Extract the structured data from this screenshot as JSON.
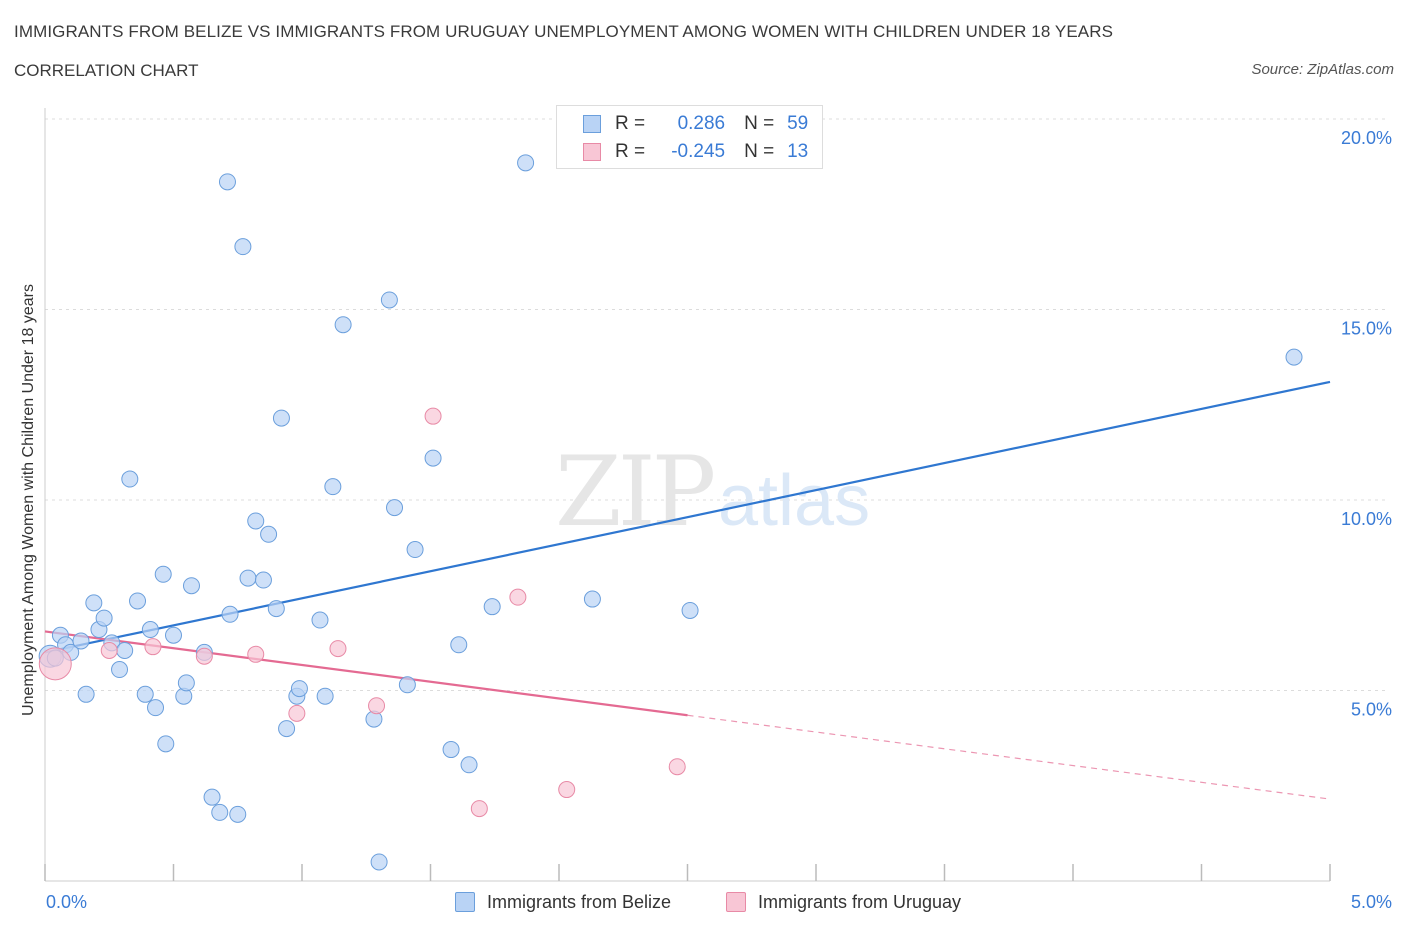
{
  "header": {
    "title": "IMMIGRANTS FROM BELIZE VS IMMIGRANTS FROM URUGUAY UNEMPLOYMENT AMONG WOMEN WITH CHILDREN UNDER 18 YEARS",
    "subtitle": "CORRELATION CHART",
    "source": "Source: ZipAtlas.com"
  },
  "legend": {
    "rows": [
      {
        "r_label": "R =",
        "r_value": "0.286",
        "n_label": "N =",
        "n_value": "59"
      },
      {
        "r_label": "R =",
        "r_value": "-0.245",
        "n_label": "N =",
        "n_value": "13"
      }
    ],
    "bottom": [
      "Immigrants from Belize",
      "Immigrants from Uruguay"
    ]
  },
  "colors": {
    "belize_fill": "#b9d3f5",
    "belize_stroke": "#6b9fdc",
    "belize_line": "#2f77d0",
    "uruguay_fill": "#f8c6d5",
    "uruguay_stroke": "#e88aa6",
    "uruguay_line": "#e46a92",
    "tick_label": "#3a7bd5",
    "grid": "#dcdcdc"
  },
  "chart_data": {
    "type": "scatter",
    "title": "IMMIGRANTS FROM BELIZE VS IMMIGRANTS FROM URUGUAY UNEMPLOYMENT AMONG WOMEN WITH CHILDREN UNDER 18 YEARS",
    "subtitle": "CORRELATION CHART",
    "xlabel": "",
    "ylabel": "Unemployment Among Women with Children Under 18 years",
    "xlim": [
      0.0,
      5.0
    ],
    "ylim": [
      0.0,
      20.0
    ],
    "x_tick_labels": [
      "0.0%",
      "5.0%"
    ],
    "y_ticks": [
      5.0,
      10.0,
      15.0,
      20.0
    ],
    "y_tick_labels": [
      "5.0%",
      "10.0%",
      "15.0%",
      "20.0%"
    ],
    "grid": true,
    "legend_position": "top-center",
    "watermark": "ZIPatlas",
    "series": [
      {
        "name": "Immigrants from Belize",
        "R": 0.286,
        "N": 59,
        "trend": {
          "x": [
            0.0,
            5.0
          ],
          "y": [
            6.0,
            13.1
          ]
        },
        "points": [
          [
            0.02,
            5.9
          ],
          [
            0.04,
            5.85
          ],
          [
            0.06,
            6.45
          ],
          [
            0.08,
            6.2
          ],
          [
            0.1,
            6.0
          ],
          [
            0.14,
            6.3
          ],
          [
            0.16,
            4.9
          ],
          [
            0.19,
            7.3
          ],
          [
            0.21,
            6.6
          ],
          [
            0.23,
            6.9
          ],
          [
            0.26,
            6.25
          ],
          [
            0.29,
            5.55
          ],
          [
            0.31,
            6.05
          ],
          [
            0.33,
            10.55
          ],
          [
            0.36,
            7.35
          ],
          [
            0.39,
            4.9
          ],
          [
            0.41,
            6.6
          ],
          [
            0.43,
            4.55
          ],
          [
            0.46,
            8.05
          ],
          [
            0.47,
            3.6
          ],
          [
            0.5,
            6.45
          ],
          [
            0.54,
            4.85
          ],
          [
            0.55,
            5.2
          ],
          [
            0.57,
            7.75
          ],
          [
            0.62,
            6.0
          ],
          [
            0.65,
            2.2
          ],
          [
            0.68,
            1.8
          ],
          [
            0.71,
            18.35
          ],
          [
            0.72,
            7.0
          ],
          [
            0.75,
            1.75
          ],
          [
            0.77,
            16.65
          ],
          [
            0.79,
            7.95
          ],
          [
            0.82,
            9.45
          ],
          [
            0.85,
            7.9
          ],
          [
            0.87,
            9.1
          ],
          [
            0.9,
            7.15
          ],
          [
            0.92,
            12.15
          ],
          [
            0.94,
            4.0
          ],
          [
            0.98,
            4.85
          ],
          [
            0.99,
            5.05
          ],
          [
            1.07,
            6.85
          ],
          [
            1.09,
            4.85
          ],
          [
            1.12,
            10.35
          ],
          [
            1.16,
            14.6
          ],
          [
            1.28,
            4.25
          ],
          [
            1.3,
            0.5
          ],
          [
            1.34,
            15.25
          ],
          [
            1.36,
            9.8
          ],
          [
            1.41,
            5.15
          ],
          [
            1.44,
            8.7
          ],
          [
            1.51,
            11.1
          ],
          [
            1.58,
            3.45
          ],
          [
            1.61,
            6.2
          ],
          [
            1.65,
            3.05
          ],
          [
            1.74,
            7.2
          ],
          [
            1.87,
            18.85
          ],
          [
            2.13,
            7.4
          ],
          [
            2.51,
            7.1
          ],
          [
            4.86,
            13.75
          ]
        ]
      },
      {
        "name": "Immigrants from Uruguay",
        "R": -0.245,
        "N": 13,
        "trend": {
          "x": [
            0.0,
            2.5
          ],
          "y": [
            6.55,
            4.35
          ]
        },
        "trend_dashed": {
          "x": [
            2.5,
            5.0
          ],
          "y": [
            4.35,
            2.15
          ]
        },
        "points": [
          [
            0.04,
            5.7
          ],
          [
            0.25,
            6.05
          ],
          [
            0.42,
            6.15
          ],
          [
            0.62,
            5.9
          ],
          [
            0.82,
            5.95
          ],
          [
            0.98,
            4.4
          ],
          [
            1.14,
            6.1
          ],
          [
            1.29,
            4.6
          ],
          [
            1.51,
            12.2
          ],
          [
            1.69,
            1.9
          ],
          [
            1.84,
            7.45
          ],
          [
            2.03,
            2.4
          ],
          [
            2.46,
            3.0
          ]
        ]
      }
    ]
  }
}
